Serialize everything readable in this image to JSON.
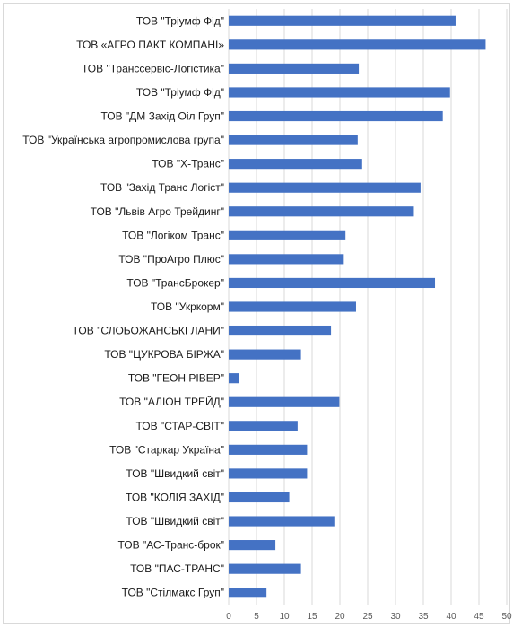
{
  "chart_data": {
    "type": "bar",
    "orientation": "horizontal",
    "title": "",
    "xlabel": "",
    "ylabel": "",
    "xlim": [
      0,
      50
    ],
    "x_ticks": [
      "0",
      "5",
      "10",
      "15",
      "20",
      "25",
      "30",
      "35",
      "40",
      "45",
      "50"
    ],
    "grid": true,
    "legend": "none",
    "bar_color": "#4472C4",
    "categories": [
      "ТОВ \"Тріумф Фід\"",
      "ТОВ «АГРО ПАКТ КОМПАНІ»",
      "ТОВ \"Транссервіс-Логістика\"",
      "ТОВ \"Тріумф Фід\"",
      "ТОВ \"ДМ Захід Оіл Груп\"",
      "ТОВ \"Українська агропромислова група\"",
      "ТОВ \"Х-Транс\"",
      "ТОВ \"Захід Транс Логіст\"",
      "ТОВ \"Львів Агро Трейдинг\"",
      "ТОВ \"Логіком Транс\"",
      "ТОВ \"ПроАгро Плюс\"",
      "ТОВ \"ТрансБрокер\"",
      "ТОВ \"Укркорм\"",
      "ТОВ \"СЛОБОЖАНСЬКІ ЛАНИ\"",
      "ТОВ \"ЦУКРОВА БІРЖА\"",
      "ТОВ \"ГЕОН РІВЕР\"",
      "ТОВ \"АЛІОН ТРЕЙД\"",
      "ТОВ \"СТАР-СВІТ\"",
      "ТОВ \"Старкар Україна\"",
      "ТОВ \"Швидкий світ\"",
      "ТОВ \"КОЛІЯ ЗАХІД\"",
      "ТОВ \"Швидкий світ\"",
      "ТОВ \"АС-Транс-брок\"",
      "ТОВ \"ПАС-ТРАНС\"",
      "ТОВ \"Стілмакс Груп\""
    ],
    "values": [
      40.8,
      46.2,
      23.4,
      39.8,
      38.5,
      23.2,
      24.0,
      34.5,
      33.3,
      21.0,
      20.7,
      37.1,
      22.9,
      18.4,
      13.0,
      1.8,
      19.9,
      12.4,
      14.1,
      14.1,
      10.9,
      19.0,
      8.4,
      13.0,
      6.8
    ]
  }
}
